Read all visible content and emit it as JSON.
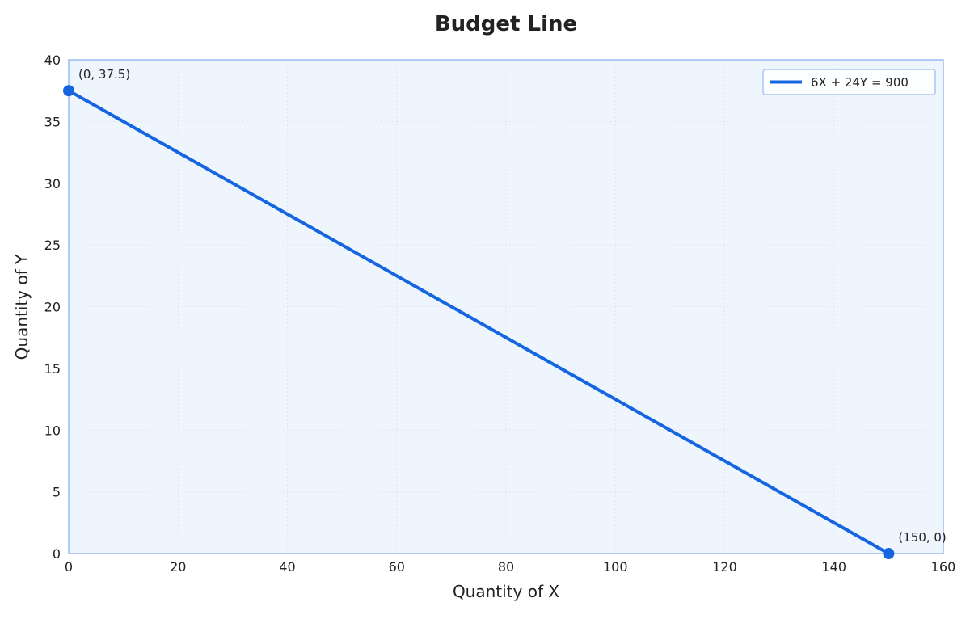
{
  "chart_data": {
    "type": "line",
    "title": "Budget Line",
    "xlabel": "Quantity of X",
    "ylabel": "Quantity of Y",
    "xlim": [
      0,
      160
    ],
    "ylim": [
      0,
      40
    ],
    "x_ticks": [
      0,
      20,
      40,
      60,
      80,
      100,
      120,
      140,
      160
    ],
    "y_ticks": [
      0,
      5,
      10,
      15,
      20,
      25,
      30,
      35,
      40
    ],
    "grid": true,
    "legend_position": "top-right",
    "series": [
      {
        "name": "6X + 24Y = 900",
        "color": "#1565e0",
        "points": [
          [
            0,
            37.5
          ],
          [
            150,
            0
          ]
        ]
      }
    ],
    "annotations": [
      {
        "text": "(0, 37.5)",
        "x": 0,
        "y": 37.5
      },
      {
        "text": "(150, 0)",
        "x": 150,
        "y": 0
      }
    ],
    "colors": {
      "plot_background": "#eef5fd",
      "frame": "#9bbcf2",
      "grid": "#dde6f2",
      "legend_border": "#a9c6f3"
    }
  }
}
